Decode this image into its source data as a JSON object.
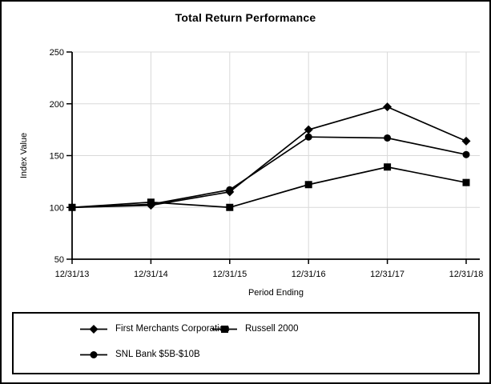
{
  "chart_data": {
    "type": "line",
    "title": "Total Return Performance",
    "xlabel": "Period Ending",
    "ylabel": "Index Value",
    "ylim": [
      50,
      250
    ],
    "yticks": [
      50,
      100,
      150,
      200,
      250
    ],
    "categories": [
      "12/31/13",
      "12/31/14",
      "12/31/15",
      "12/31/16",
      "12/31/17",
      "12/31/18"
    ],
    "grid": true,
    "grid_color": "#d9d9d9",
    "axis_color": "#000000",
    "background": "#ffffff",
    "legend_position": "boxed-bottom",
    "series": [
      {
        "name": "First Merchants Corporation",
        "marker": "diamond",
        "color": "#000000",
        "values": [
          100,
          102,
          115,
          175,
          197,
          164
        ]
      },
      {
        "name": "Russell 2000",
        "marker": "square",
        "color": "#000000",
        "values": [
          100,
          105,
          100,
          122,
          139,
          124
        ]
      },
      {
        "name": "SNL Bank $5B-$10B",
        "marker": "circle",
        "color": "#000000",
        "values": [
          100,
          103,
          117,
          168,
          167,
          151
        ]
      }
    ]
  }
}
